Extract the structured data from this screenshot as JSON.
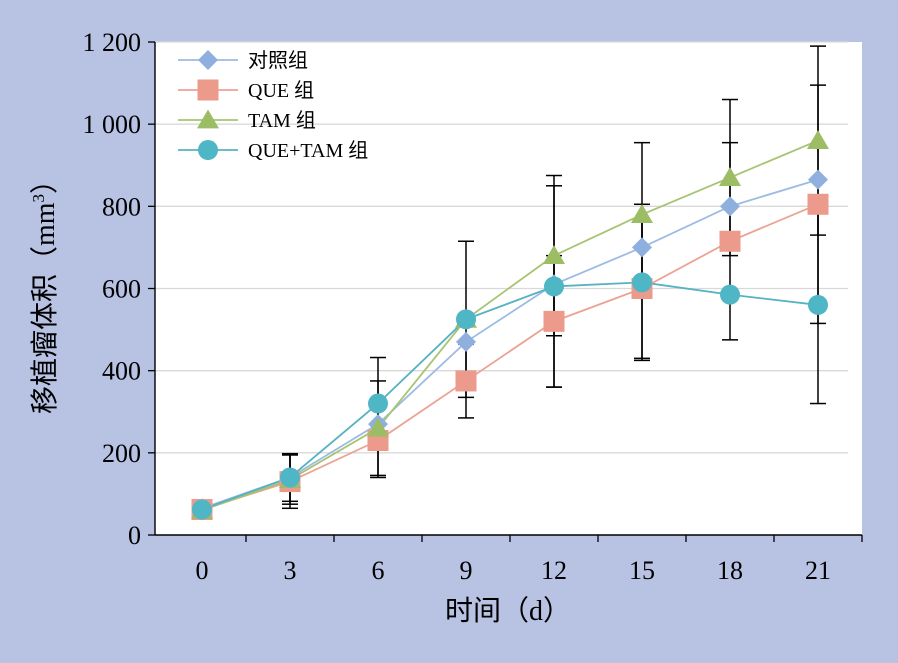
{
  "chart_data": {
    "type": "line",
    "xlabel": "时间（d）",
    "ylabel": "移植瘤体积（mm³）",
    "ylabel_parts": [
      "移植瘤体积（mm",
      "3",
      "）"
    ],
    "x": [
      0,
      3,
      6,
      9,
      12,
      15,
      18,
      21
    ],
    "x_tick_labels": [
      "0",
      "3",
      "6",
      "9",
      "12",
      "15",
      "18",
      "21"
    ],
    "y_ticks": [
      0,
      200,
      400,
      600,
      800,
      1000,
      1200
    ],
    "y_tick_labels": [
      "0",
      "200",
      "400",
      "600",
      "800",
      "1 000",
      "1 200"
    ],
    "ylim": [
      0,
      1200
    ],
    "grid": "horizontal",
    "legend_position": "top-left",
    "series": [
      {
        "name": "对照组",
        "color": "#8fb0de",
        "line_color": "#9dbbe3",
        "marker": "diamond",
        "values": [
          65,
          140,
          270,
          470,
          610,
          700,
          800,
          865
        ],
        "errors": [
          0,
          0,
          0,
          0,
          0,
          0,
          0,
          0
        ]
      },
      {
        "name": "QUE 组",
        "color": "#ec9a8c",
        "line_color": "#eba394",
        "marker": "square",
        "values": [
          62,
          130,
          230,
          375,
          520,
          600,
          715,
          805
        ],
        "errors": [
          0,
          65,
          90,
          90,
          160,
          170,
          240,
          290
        ]
      },
      {
        "name": "TAM 组",
        "color": "#9dbd64",
        "line_color": "#a6c472",
        "marker": "triangle",
        "values": [
          60,
          135,
          260,
          525,
          680,
          780,
          870,
          960
        ],
        "errors": [
          0,
          60,
          115,
          190,
          195,
          175,
          190,
          230
        ]
      },
      {
        "name": "QUE+TAM 组",
        "color": "#4eb6c4",
        "line_color": "#56b2c1",
        "marker": "circle",
        "values": [
          62,
          140,
          320,
          525,
          605,
          615,
          585,
          560
        ],
        "errors": [
          0,
          58,
          112,
          0,
          245,
          190,
          0,
          240
        ]
      }
    ]
  }
}
